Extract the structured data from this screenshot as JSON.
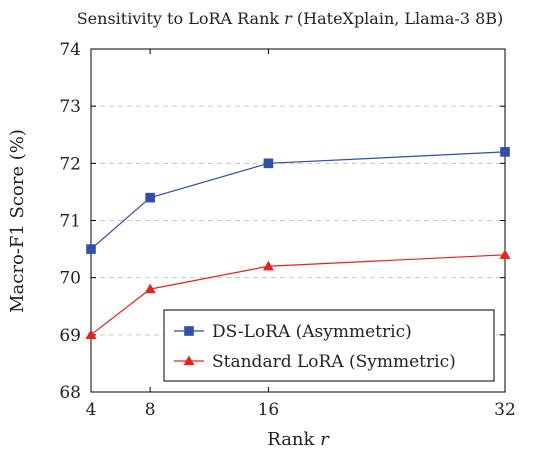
{
  "chart_data": {
    "type": "line",
    "title": "Sensitivity to LoRA Rank r (HateXplain, Llama-3 8B)",
    "title_parts": {
      "before": "Sensitivity to LoRA Rank ",
      "var": "r",
      "after": " (HateXplain, Llama-3 8B)"
    },
    "xlabel": "Rank r",
    "xlabel_parts": {
      "before": "Rank ",
      "var": "r"
    },
    "ylabel": "Macro-F1 Score (%)",
    "x": [
      4,
      8,
      16,
      32
    ],
    "xlim": [
      4,
      32
    ],
    "ylim": [
      68,
      74
    ],
    "x_ticks": [
      4,
      8,
      16,
      32
    ],
    "y_ticks": [
      68,
      69,
      70,
      71,
      72,
      73,
      74
    ],
    "grid": "horizontal dashed",
    "legend_position": "bottom-right",
    "series": [
      {
        "name": "DS-LoRA (Asymmetric)",
        "values": [
          70.5,
          71.4,
          72.0,
          72.2
        ],
        "color": "#2f4fa8",
        "marker": "square"
      },
      {
        "name": "Standard LoRA (Symmetric)",
        "values": [
          69.0,
          69.8,
          70.2,
          70.4
        ],
        "color": "#e8211c",
        "marker": "triangle"
      }
    ]
  }
}
